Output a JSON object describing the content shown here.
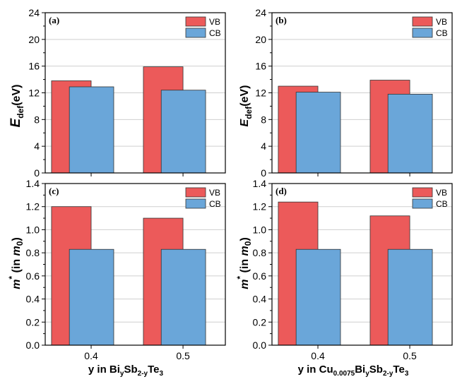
{
  "colors": {
    "vb": "#ec5a5a",
    "cb": "#6aa6d9",
    "grid": "#cfcfcf",
    "axis": "#000000"
  },
  "legend": {
    "vb": "VB",
    "cb": "CB"
  },
  "chart_data": [
    {
      "type": "bar",
      "panel": "(a)",
      "categories": [
        "0.4",
        "0.5"
      ],
      "series": [
        {
          "name": "VB",
          "values": [
            13.8,
            15.9
          ]
        },
        {
          "name": "CB",
          "values": [
            12.9,
            12.4
          ]
        }
      ],
      "ylim": [
        0,
        24
      ],
      "yticks": [
        "0",
        "4",
        "8",
        "12",
        "16",
        "20",
        "24"
      ],
      "ylabel": "E_def (eV)",
      "xlabel": "y in Bi_ySb_2-yTe_3",
      "legend_position": "top-right"
    },
    {
      "type": "bar",
      "panel": "(b)",
      "categories": [
        "0.4",
        "0.5"
      ],
      "series": [
        {
          "name": "VB",
          "values": [
            13.0,
            13.9
          ]
        },
        {
          "name": "CB",
          "values": [
            12.1,
            11.8
          ]
        }
      ],
      "ylim": [
        0,
        24
      ],
      "yticks": [
        "0",
        "4",
        "8",
        "12",
        "16",
        "20",
        "24"
      ],
      "ylabel": "E_def (eV)",
      "xlabel": "y in Cu_0.0075Bi_ySb_2-yTe_3",
      "legend_position": "top-right"
    },
    {
      "type": "bar",
      "panel": "(c)",
      "categories": [
        "0.4",
        "0.5"
      ],
      "series": [
        {
          "name": "VB",
          "values": [
            1.2,
            1.1
          ]
        },
        {
          "name": "CB",
          "values": [
            0.83,
            0.83
          ]
        }
      ],
      "ylim": [
        0,
        1.4
      ],
      "yticks": [
        "0.0",
        "0.2",
        "0.4",
        "0.6",
        "0.8",
        "1.0",
        "1.2",
        "1.4"
      ],
      "ylabel": "m* (in m0)",
      "xlabel": "y in Bi_ySb_2-yTe_3",
      "legend_position": "top-right"
    },
    {
      "type": "bar",
      "panel": "(d)",
      "categories": [
        "0.4",
        "0.5"
      ],
      "series": [
        {
          "name": "VB",
          "values": [
            1.24,
            1.12
          ]
        },
        {
          "name": "CB",
          "values": [
            0.83,
            0.83
          ]
        }
      ],
      "ylim": [
        0,
        1.4
      ],
      "yticks": [
        "0.0",
        "0.2",
        "0.4",
        "0.6",
        "0.8",
        "1.0",
        "1.2",
        "1.4"
      ],
      "ylabel": "m* (in m0)",
      "xlabel": "y in Cu_0.0075Bi_ySb_2-yTe_3",
      "legend_position": "top-right"
    }
  ],
  "ylabels": {
    "edef": {
      "main": "E",
      "sub": "def",
      "unit": "(eV)"
    },
    "mstar": {
      "main": "m",
      "sup": "*",
      "pre": " (in ",
      "var": "m",
      "sub": "0",
      "post": ")"
    }
  },
  "xlabels": {
    "left": {
      "p1": "y in Bi",
      "s1": "y",
      "p2": "Sb",
      "s2": "2-y",
      "p3": "Te",
      "s3": "3"
    },
    "right": {
      "p1": "y in Cu",
      "s1": "0.0075",
      "p2": "Bi",
      "s2": "y",
      "p3": "Sb",
      "s3": "2-y",
      "p4": "Te",
      "s4": "3"
    }
  }
}
